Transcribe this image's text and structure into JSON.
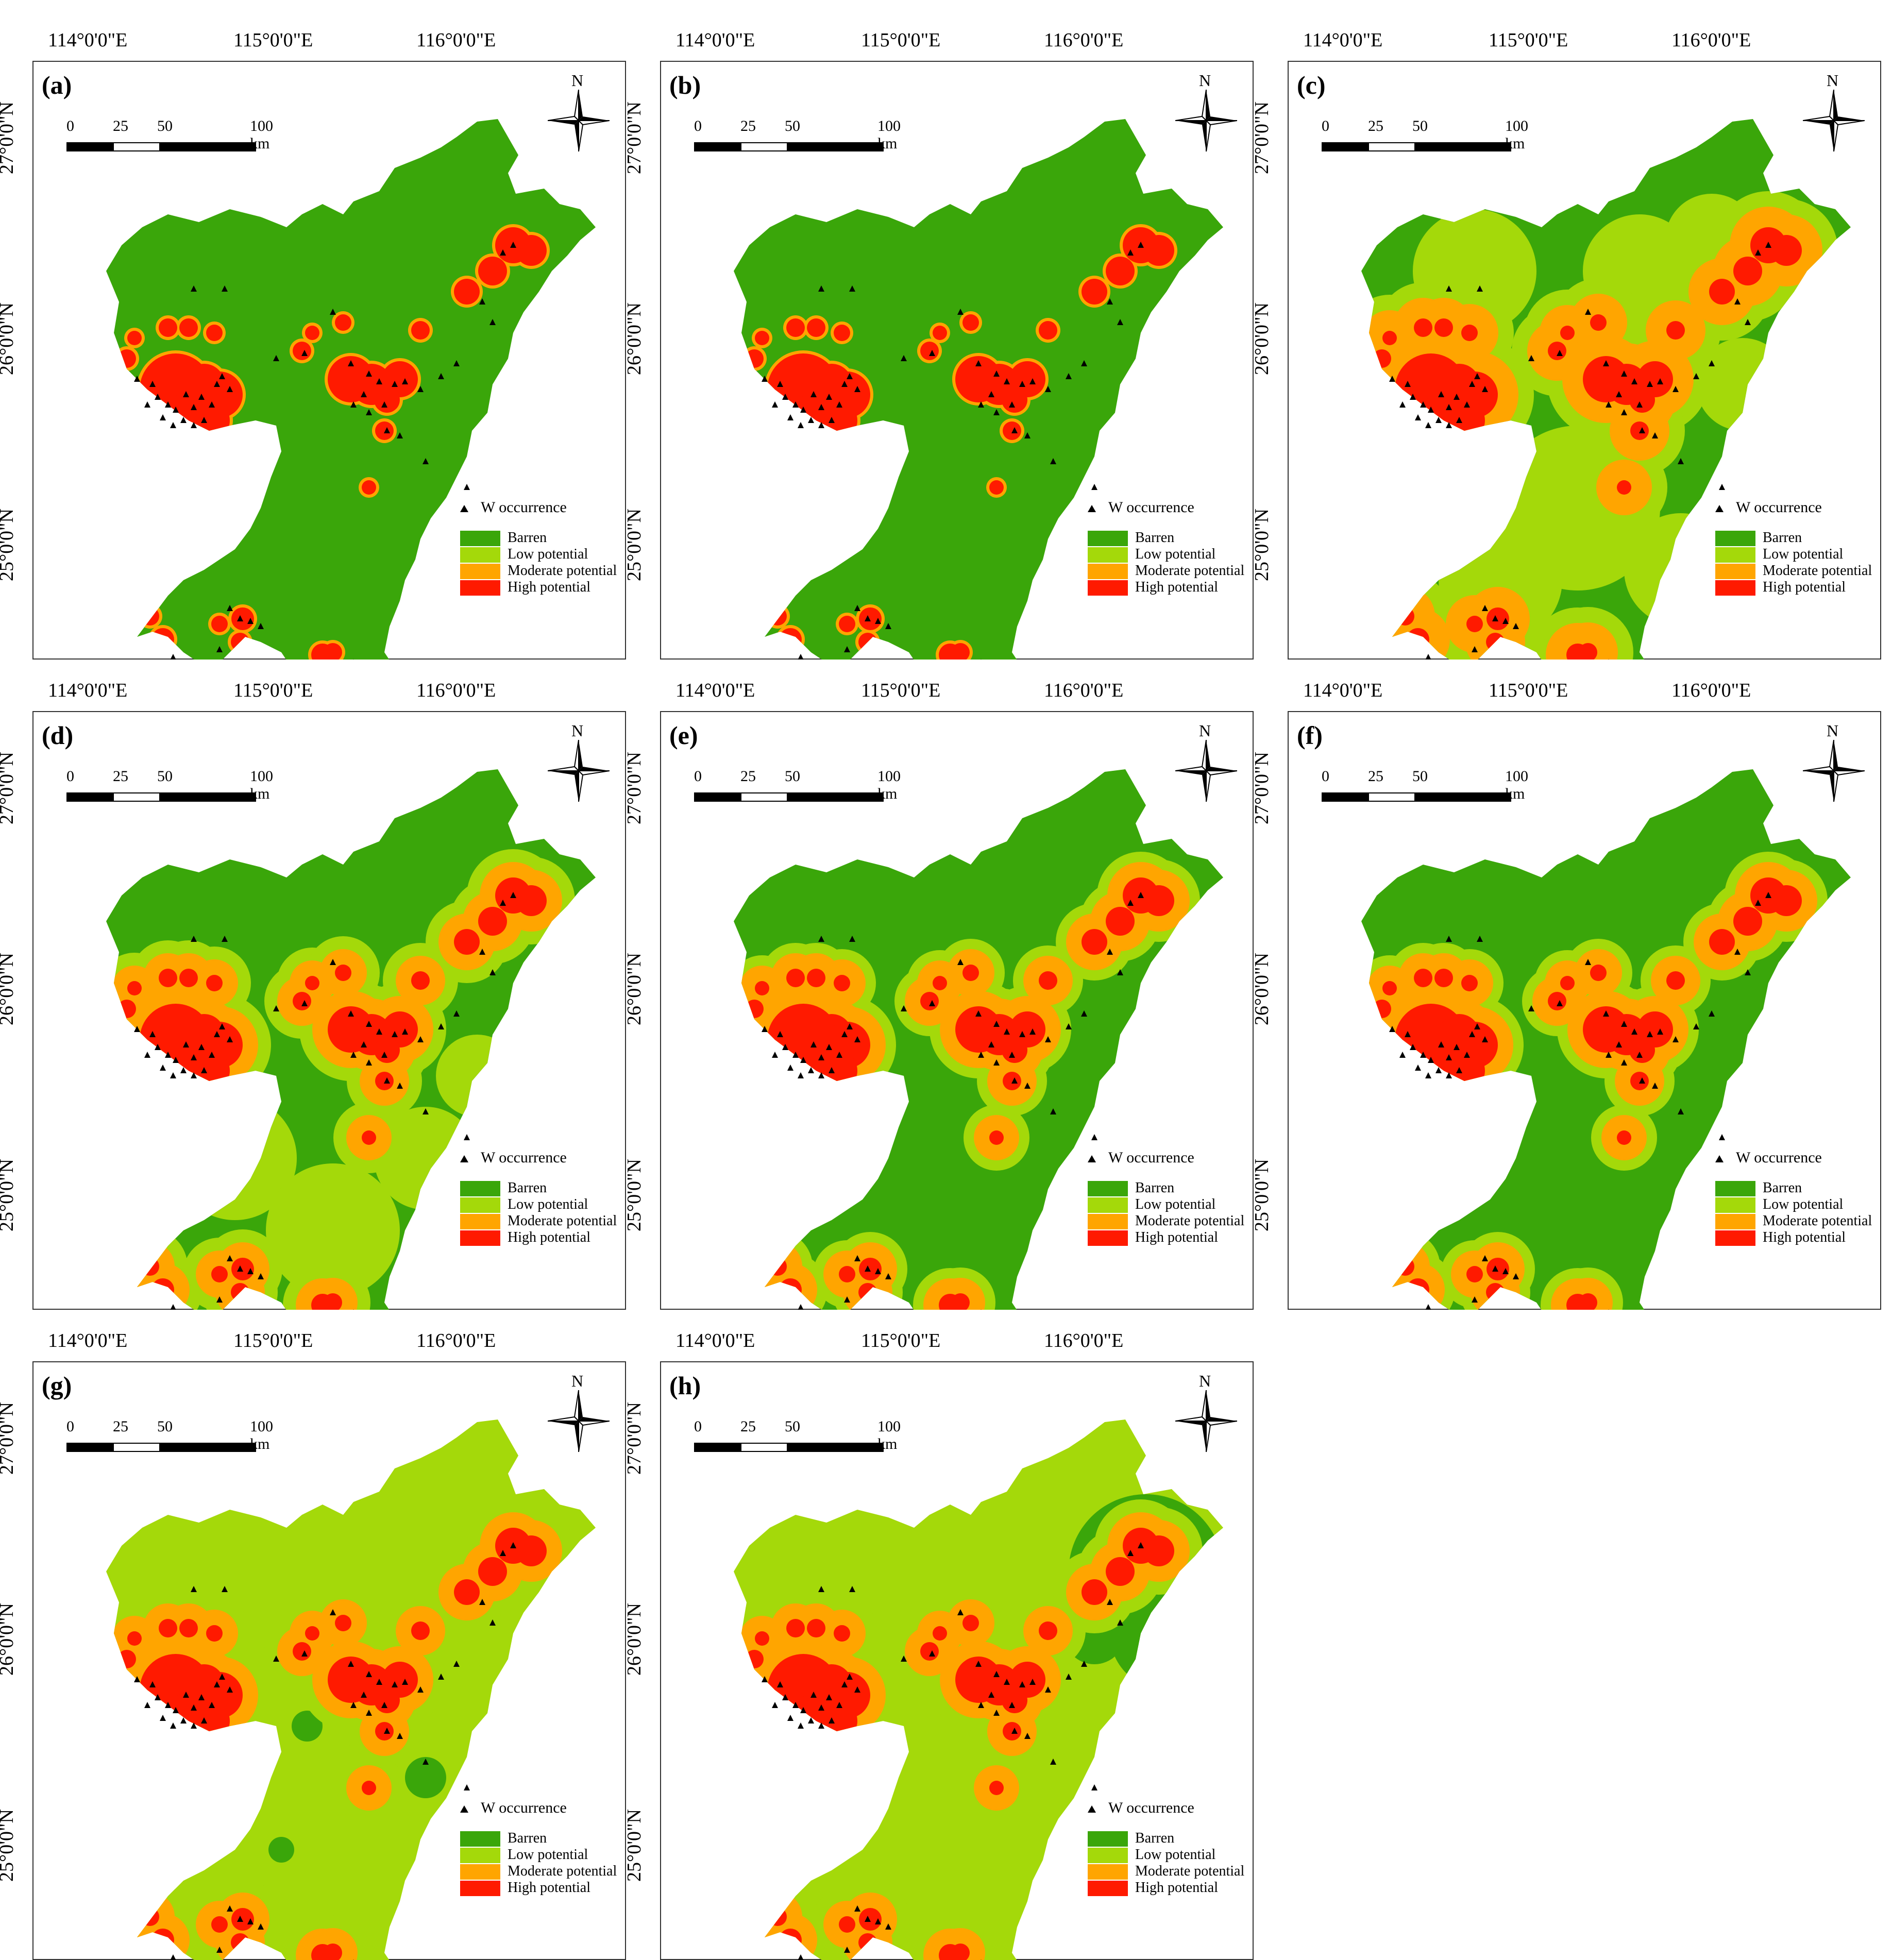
{
  "figure": {
    "panels": [
      {
        "label": "(a)",
        "id": "a",
        "scheme": "a"
      },
      {
        "label": "(b)",
        "id": "b",
        "scheme": "a"
      },
      {
        "label": "(c)",
        "id": "c",
        "scheme": "c"
      },
      {
        "label": "(d)",
        "id": "d",
        "scheme": "d"
      },
      {
        "label": "(e)",
        "id": "e",
        "scheme": "e"
      },
      {
        "label": "(f)",
        "id": "f",
        "scheme": "e"
      },
      {
        "label": "(g)",
        "id": "g",
        "scheme": "g"
      },
      {
        "label": "(h)",
        "id": "h",
        "scheme": "h"
      }
    ],
    "longitude_labels": [
      "114°0'0\"E",
      "115°0'0\"E",
      "116°0'0\"E"
    ],
    "latitude_labels": [
      "27°0'0\"N",
      "26°0'0\"N",
      "25°0'0\"N"
    ],
    "north_arrow_label": "N",
    "scale_bar": {
      "ticks": [
        "0",
        "25",
        "50",
        "100 km"
      ]
    },
    "legend": {
      "occurrence_label": "W occurrence",
      "classes": [
        {
          "label": "Barren",
          "color": "#3aa60a"
        },
        {
          "label": "Low potential",
          "color": "#a4d90a"
        },
        {
          "label": "Moderate potential",
          "color": "#ffa500"
        },
        {
          "label": "High potential",
          "color": "#ff1a00"
        }
      ]
    }
  }
}
